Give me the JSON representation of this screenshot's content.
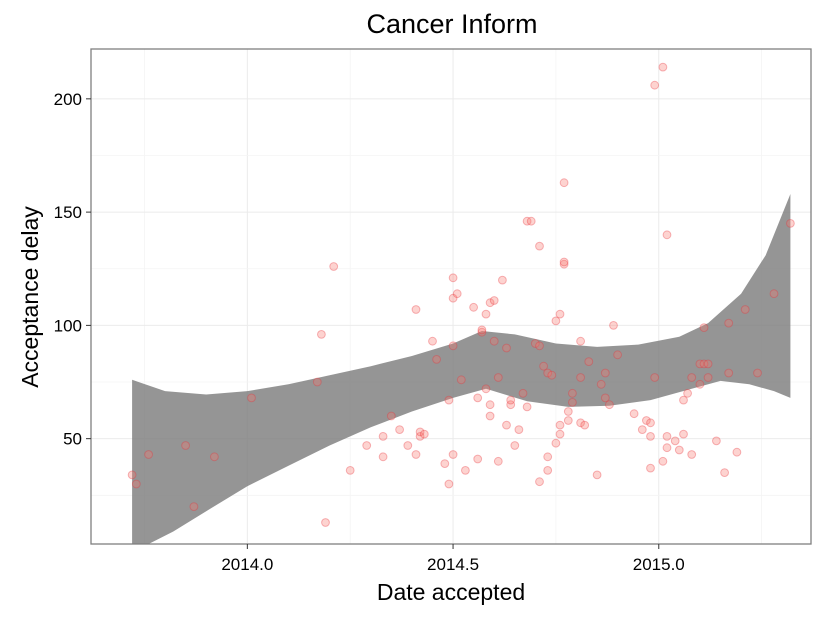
{
  "chart_data": {
    "type": "scatter",
    "title": "Cancer Inform",
    "xlabel": "Date accepted",
    "ylabel": "Acceptance delay",
    "xlim": [
      13.62,
      15.37
    ],
    "ylim": [
      3.5,
      222
    ],
    "x_ticks": [
      14.0,
      14.5,
      15.0
    ],
    "x_tick_labels": [
      "2014.0",
      "2014.5",
      "2015.0"
    ],
    "y_ticks": [
      50,
      100,
      150,
      200
    ],
    "y_tick_labels": [
      "50",
      "100",
      "150",
      "200"
    ],
    "grid": true,
    "colors": {
      "points": "#f8766d",
      "band": "#7a7a7a",
      "panel_border": "#7f7f7f"
    },
    "points": [
      [
        13.72,
        34
      ],
      [
        13.73,
        30
      ],
      [
        13.76,
        43
      ],
      [
        13.85,
        47
      ],
      [
        13.87,
        20
      ],
      [
        13.92,
        42
      ],
      [
        14.01,
        68
      ],
      [
        14.17,
        75
      ],
      [
        14.18,
        96
      ],
      [
        14.19,
        13
      ],
      [
        14.21,
        126
      ],
      [
        14.25,
        36
      ],
      [
        14.29,
        47
      ],
      [
        14.33,
        42
      ],
      [
        14.33,
        51
      ],
      [
        14.35,
        60
      ],
      [
        14.37,
        54
      ],
      [
        14.39,
        47
      ],
      [
        14.41,
        43
      ],
      [
        14.41,
        107
      ],
      [
        14.42,
        51
      ],
      [
        14.42,
        53
      ],
      [
        14.43,
        52
      ],
      [
        14.45,
        93
      ],
      [
        14.46,
        85
      ],
      [
        14.48,
        39
      ],
      [
        14.49,
        67
      ],
      [
        14.5,
        43
      ],
      [
        14.49,
        30
      ],
      [
        14.5,
        91
      ],
      [
        14.5,
        112
      ],
      [
        14.5,
        121
      ],
      [
        14.51,
        114
      ],
      [
        14.52,
        76
      ],
      [
        14.53,
        36
      ],
      [
        14.55,
        108
      ],
      [
        14.56,
        41
      ],
      [
        14.56,
        68
      ],
      [
        14.57,
        97
      ],
      [
        14.57,
        98
      ],
      [
        14.58,
        105
      ],
      [
        14.58,
        72
      ],
      [
        14.59,
        65
      ],
      [
        14.59,
        60
      ],
      [
        14.59,
        110
      ],
      [
        14.6,
        111
      ],
      [
        14.6,
        93
      ],
      [
        14.61,
        40
      ],
      [
        14.61,
        77
      ],
      [
        14.62,
        120
      ],
      [
        14.63,
        56
      ],
      [
        14.63,
        90
      ],
      [
        14.64,
        65
      ],
      [
        14.64,
        67
      ],
      [
        14.65,
        47
      ],
      [
        14.66,
        54
      ],
      [
        14.67,
        70
      ],
      [
        14.68,
        64
      ],
      [
        14.68,
        146
      ],
      [
        14.69,
        146
      ],
      [
        14.7,
        92
      ],
      [
        14.71,
        91
      ],
      [
        14.71,
        31
      ],
      [
        14.71,
        135
      ],
      [
        14.72,
        82
      ],
      [
        14.73,
        42
      ],
      [
        14.73,
        36
      ],
      [
        14.73,
        79
      ],
      [
        14.74,
        78
      ],
      [
        14.75,
        102
      ],
      [
        14.75,
        48
      ],
      [
        14.76,
        52
      ],
      [
        14.76,
        56
      ],
      [
        14.76,
        105
      ],
      [
        14.77,
        127
      ],
      [
        14.77,
        128
      ],
      [
        14.77,
        163
      ],
      [
        14.78,
        58
      ],
      [
        14.78,
        62
      ],
      [
        14.79,
        70
      ],
      [
        14.79,
        66
      ],
      [
        14.81,
        57
      ],
      [
        14.81,
        77
      ],
      [
        14.81,
        93
      ],
      [
        14.82,
        56
      ],
      [
        14.83,
        84
      ],
      [
        14.85,
        34
      ],
      [
        14.86,
        74
      ],
      [
        14.87,
        68
      ],
      [
        14.87,
        79
      ],
      [
        14.88,
        65
      ],
      [
        14.89,
        100
      ],
      [
        14.9,
        87
      ],
      [
        14.94,
        61
      ],
      [
        14.96,
        54
      ],
      [
        14.97,
        58
      ],
      [
        14.98,
        51
      ],
      [
        14.98,
        57
      ],
      [
        14.98,
        37
      ],
      [
        14.99,
        77
      ],
      [
        14.99,
        206
      ],
      [
        15.01,
        40
      ],
      [
        15.02,
        46
      ],
      [
        15.02,
        51
      ],
      [
        15.01,
        214
      ],
      [
        15.02,
        140
      ],
      [
        15.04,
        49
      ],
      [
        15.05,
        45
      ],
      [
        15.06,
        52
      ],
      [
        15.06,
        67
      ],
      [
        15.07,
        70
      ],
      [
        15.08,
        77
      ],
      [
        15.08,
        43
      ],
      [
        15.1,
        74
      ],
      [
        15.1,
        83
      ],
      [
        15.11,
        83
      ],
      [
        15.11,
        99
      ],
      [
        15.12,
        77
      ],
      [
        15.12,
        83
      ],
      [
        15.14,
        49
      ],
      [
        15.16,
        35
      ],
      [
        15.17,
        79
      ],
      [
        15.17,
        101
      ],
      [
        15.19,
        44
      ],
      [
        15.21,
        107
      ],
      [
        15.24,
        79
      ],
      [
        15.28,
        114
      ],
      [
        15.32,
        145
      ]
    ],
    "band_upper": [
      [
        13.72,
        76
      ],
      [
        13.8,
        71
      ],
      [
        13.9,
        69.5
      ],
      [
        14.0,
        71
      ],
      [
        14.1,
        74
      ],
      [
        14.2,
        78
      ],
      [
        14.3,
        82
      ],
      [
        14.4,
        86.5
      ],
      [
        14.5,
        92
      ],
      [
        14.57,
        97.5
      ],
      [
        14.65,
        96
      ],
      [
        14.75,
        92
      ],
      [
        14.85,
        90.5
      ],
      [
        14.95,
        91.5
      ],
      [
        15.05,
        95
      ],
      [
        15.12,
        101
      ],
      [
        15.2,
        114
      ],
      [
        15.26,
        131
      ],
      [
        15.32,
        158
      ]
    ],
    "band_lower": [
      [
        13.72,
        3.5
      ],
      [
        13.76,
        3.5
      ],
      [
        13.82,
        9
      ],
      [
        13.9,
        18
      ],
      [
        14.0,
        29
      ],
      [
        14.1,
        38
      ],
      [
        14.2,
        47
      ],
      [
        14.3,
        55
      ],
      [
        14.4,
        62
      ],
      [
        14.5,
        68
      ],
      [
        14.58,
        72
      ],
      [
        14.68,
        66.5
      ],
      [
        14.78,
        64
      ],
      [
        14.88,
        64.5
      ],
      [
        14.98,
        67
      ],
      [
        15.08,
        72
      ],
      [
        15.15,
        75.5
      ],
      [
        15.22,
        74
      ],
      [
        15.28,
        71
      ],
      [
        15.32,
        68
      ]
    ]
  }
}
